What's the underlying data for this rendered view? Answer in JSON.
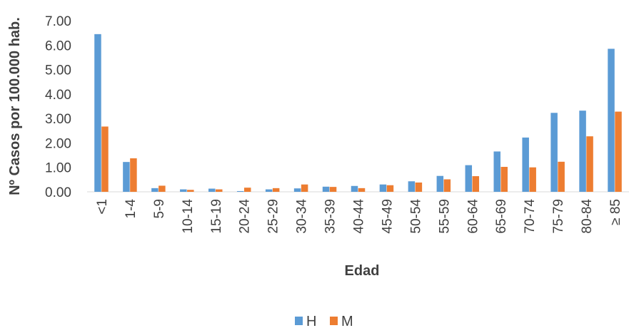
{
  "chart_data": {
    "type": "bar",
    "xlabel": "Edad",
    "ylabel": "Nº Casos por 100.000 hab.",
    "ylim": [
      0,
      7
    ],
    "yticks": [
      "0.00",
      "1.00",
      "2.00",
      "3.00",
      "4.00",
      "5.00",
      "6.00",
      "7.00"
    ],
    "grid": false,
    "legend_position": "bottom",
    "categories": [
      "<1",
      "1-4",
      "5-9",
      "10-14",
      "15-19",
      "20-24",
      "25-29",
      "30-34",
      "35-39",
      "40-44",
      "45-49",
      "50-54",
      "55-59",
      "60-64",
      "65-69",
      "70-74",
      "75-79",
      "80-84",
      "≥ 85"
    ],
    "series": [
      {
        "name": "H",
        "color": "#5b9bd5",
        "values": [
          6.45,
          1.22,
          0.15,
          0.1,
          0.13,
          0.03,
          0.1,
          0.14,
          0.21,
          0.24,
          0.3,
          0.43,
          0.65,
          1.09,
          1.65,
          2.22,
          3.23,
          3.32,
          5.85
        ]
      },
      {
        "name": "M",
        "color": "#ed7d31",
        "values": [
          2.67,
          1.37,
          0.25,
          0.08,
          0.1,
          0.17,
          0.15,
          0.3,
          0.2,
          0.15,
          0.27,
          0.38,
          0.51,
          0.64,
          1.02,
          1.0,
          1.23,
          2.27,
          3.28
        ]
      }
    ]
  }
}
